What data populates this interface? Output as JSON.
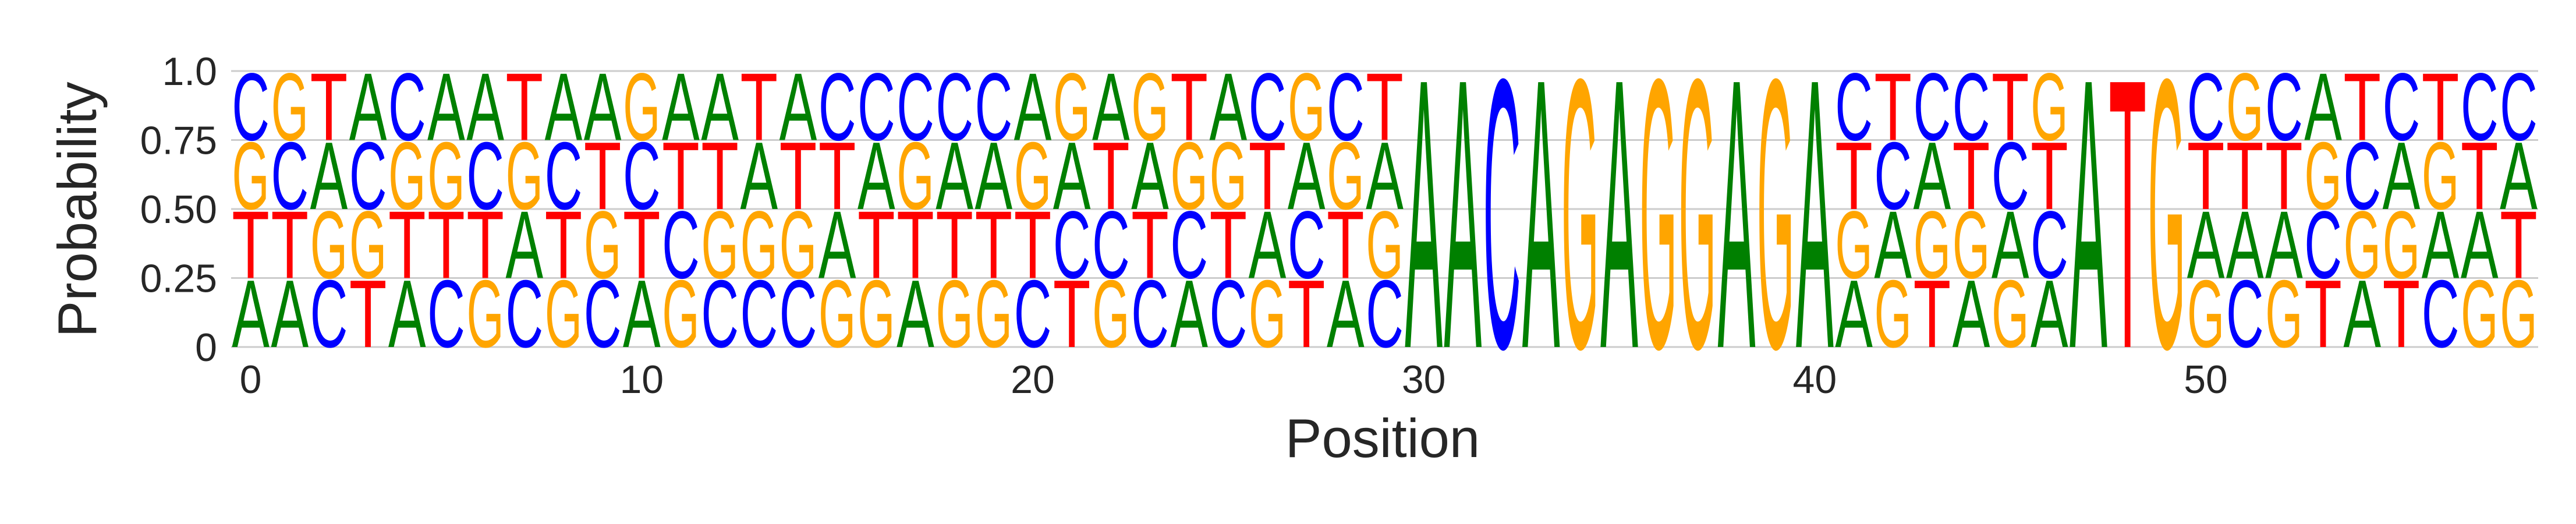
{
  "chart_data": {
    "type": "sequence-logo",
    "xlabel": "Position",
    "ylabel": "Probability",
    "ylim": [
      0,
      1
    ],
    "xlim": [
      -0.5,
      58.5
    ],
    "y_ticks": [
      {
        "value": 0,
        "label": "0"
      },
      {
        "value": 0.25,
        "label": "0.25"
      },
      {
        "value": 0.5,
        "label": "0.50"
      },
      {
        "value": 0.75,
        "label": "0.75"
      },
      {
        "value": 1,
        "label": "1.0"
      }
    ],
    "x_ticks": [
      {
        "value": 0,
        "label": "0"
      },
      {
        "value": 10,
        "label": "10"
      },
      {
        "value": 20,
        "label": "20"
      },
      {
        "value": 30,
        "label": "30"
      },
      {
        "value": 40,
        "label": "40"
      },
      {
        "value": 50,
        "label": "50"
      }
    ],
    "grid": "horizontal",
    "colors": {
      "A": "#008000",
      "C": "#0000ff",
      "G": "#ffa500",
      "T": "#ff0000"
    },
    "sequences_top_to_bottom": [
      "CGTACAATAAGAATACCCCCAGAGTACGCT",
      "GCACGGCGCTCTTATTAGAAGATAGGTAGA",
      "TTGGTTTATGTCGGGATTTTTCCTCTACTG",
      "AACTACGCGCAGCCCGGAGGCTGCACGTAC"
    ],
    "positions_tail": [
      {
        "pos": 30,
        "letters": {
          "A": 1
        }
      },
      {
        "pos": 31,
        "letters": {
          "A": 1
        }
      },
      {
        "pos": 32,
        "letters": {
          "C": 1
        }
      },
      {
        "pos": 33,
        "letters": {
          "A": 1
        }
      },
      {
        "pos": 34,
        "letters": {
          "G": 1
        }
      },
      {
        "pos": 35,
        "letters": {
          "A": 1
        }
      },
      {
        "pos": 36,
        "letters": {
          "G": 1
        }
      },
      {
        "pos": 37,
        "letters": {
          "G": 1
        }
      },
      {
        "pos": 38,
        "letters": {
          "A": 1
        }
      },
      {
        "pos": 39,
        "letters": {
          "G": 1
        }
      },
      {
        "pos": 40,
        "letters": {
          "A": 1
        }
      },
      {
        "pos": 41,
        "letters": {
          "C": 0.25,
          "T": 0.25,
          "G": 0.25,
          "A": 0.25
        }
      },
      {
        "pos": 42,
        "letters": {
          "T": 0.25,
          "C": 0.25,
          "A": 0.25,
          "G": 0.25
        }
      },
      {
        "pos": 43,
        "letters": {
          "C": 0.25,
          "A": 0.25,
          "G": 0.25,
          "T": 0.25
        }
      },
      {
        "pos": 44,
        "letters": {
          "C": 0.25,
          "T": 0.25,
          "G": 0.25,
          "A": 0.25
        }
      },
      {
        "pos": 45,
        "letters": {
          "T": 0.25,
          "C": 0.25,
          "A": 0.25,
          "G": 0.25
        }
      },
      {
        "pos": 46,
        "letters": {
          "G": 0.25,
          "T": 0.25,
          "C": 0.25,
          "A": 0.25
        }
      },
      {
        "pos": 47,
        "letters": {
          "A": 1
        }
      },
      {
        "pos": 48,
        "letters": {
          "T": 1
        }
      },
      {
        "pos": 49,
        "letters": {
          "G": 1
        }
      },
      {
        "pos": 50,
        "letters": {
          "C": 0.25,
          "T": 0.25,
          "A": 0.25,
          "G": 0.25
        }
      },
      {
        "pos": 51,
        "letters": {
          "G": 0.25,
          "T": 0.25,
          "A": 0.25,
          "C": 0.25
        }
      },
      {
        "pos": 52,
        "letters": {
          "C": 0.25,
          "T": 0.25,
          "A": 0.25,
          "G": 0.25
        }
      },
      {
        "pos": 53,
        "letters": {
          "A": 0.25,
          "G": 0.25,
          "C": 0.25,
          "T": 0.25
        }
      },
      {
        "pos": 54,
        "letters": {
          "T": 0.25,
          "C": 0.25,
          "G": 0.25,
          "A": 0.25
        }
      },
      {
        "pos": 55,
        "letters": {
          "C": 0.25,
          "A": 0.25,
          "G": 0.25,
          "T": 0.25
        }
      },
      {
        "pos": 56,
        "letters": {
          "T": 0.25,
          "G": 0.25,
          "A": 0.25,
          "C": 0.25
        }
      },
      {
        "pos": 57,
        "letters": {
          "C": 0.25,
          "T": 0.25,
          "A": 0.25,
          "G": 0.25
        }
      },
      {
        "pos": 58,
        "letters": {
          "C": 0.25,
          "A": 0.25,
          "T": 0.25,
          "G": 0.25
        }
      }
    ]
  }
}
